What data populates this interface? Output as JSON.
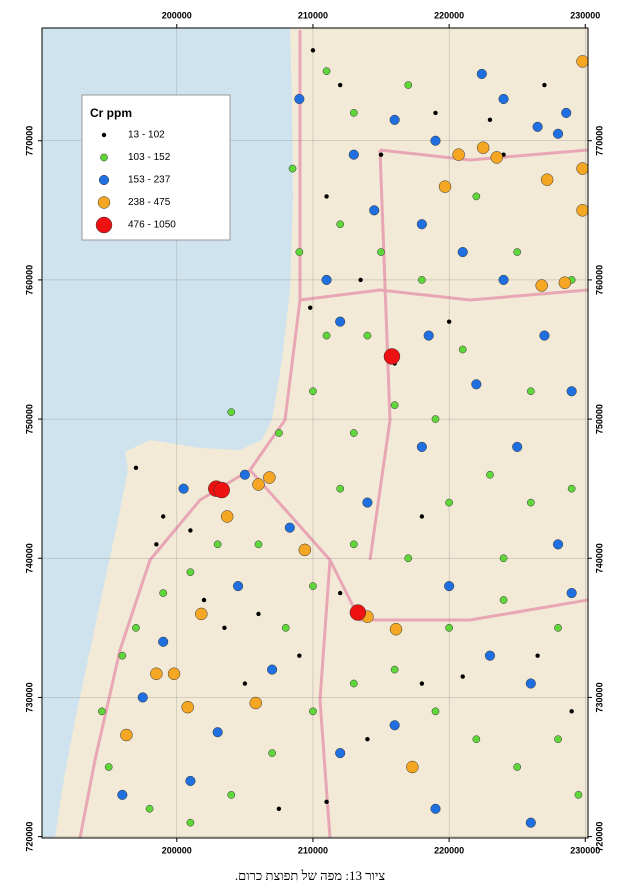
{
  "chart_data": {
    "type": "scatter",
    "legend_title": "Cr ppm",
    "caption": "ציור 13: מפה של תפוצת כרום.",
    "xlim": [
      190100,
      230200
    ],
    "ylim": [
      719900,
      778100
    ],
    "xticks": [
      200000,
      210000,
      220000,
      230000
    ],
    "yticks": [
      720000,
      730000,
      740000,
      750000,
      760000,
      770000
    ],
    "grid": true,
    "legend": "upper left",
    "series": [
      {
        "name": "13 - 102",
        "color": "#000000",
        "x": [
          210000,
          212000,
          215000,
          219000,
          223000,
          227000,
          211000,
          213500,
          216000,
          220000,
          218000,
          212000,
          209000,
          206000,
          202000,
          198500,
          197000,
          199000,
          201000,
          203500,
          205000,
          207500,
          211000,
          214000,
          218000,
          221000,
          226500,
          229000,
          209800,
          224000
        ],
        "y": [
          776500,
          774000,
          769000,
          772000,
          771500,
          774000,
          766000,
          760000,
          754000,
          757000,
          743000,
          737500,
          733000,
          736000,
          737000,
          741000,
          746500,
          743000,
          742000,
          735000,
          731000,
          722000,
          722500,
          727000,
          731000,
          731500,
          733000,
          729000,
          758000,
          769000
        ]
      },
      {
        "name": "103 - 152",
        "color": "#5fd63a",
        "x": [
          211000,
          213000,
          217000,
          215000,
          212000,
          210000,
          213000,
          216000,
          220000,
          223000,
          226000,
          229000,
          228000,
          224000,
          220000,
          217000,
          213000,
          210000,
          208000,
          206000,
          203000,
          201000,
          199000,
          197000,
          196000,
          194500,
          195000,
          198000,
          201000,
          204000,
          207000,
          210000,
          213000,
          216000,
          219000,
          222000,
          225000,
          228000,
          229500,
          224000,
          221000,
          225000,
          218000,
          214000,
          209000,
          222000,
          229000,
          226000,
          219000,
          212000,
          207500,
          204000,
          208500,
          211000
        ],
        "y": [
          775000,
          772000,
          774000,
          762000,
          764000,
          752000,
          749000,
          751000,
          744000,
          746000,
          744000,
          745000,
          735000,
          740000,
          735000,
          740000,
          741000,
          738000,
          735000,
          741000,
          741000,
          739000,
          737500,
          735000,
          733000,
          729000,
          725000,
          722000,
          721000,
          723000,
          726000,
          729000,
          731000,
          732000,
          729000,
          727000,
          725000,
          727000,
          723000,
          737000,
          755000,
          762000,
          760000,
          756000,
          762000,
          766000,
          760000,
          752000,
          750000,
          745000,
          749000,
          750500,
          768000,
          756000
        ]
      },
      {
        "name": "153 - 237",
        "color": "#1f6fe0",
        "x": [
          222400,
          224000,
          226500,
          228000,
          213000,
          216000,
          218000,
          221000,
          224000,
          227000,
          229000,
          218500,
          212000,
          205000,
          200500,
          208300,
          204500,
          199000,
          197500,
          201000,
          196000,
          203000,
          207000,
          214000,
          218000,
          222000,
          225000,
          228000,
          220000,
          223000,
          226000,
          216000,
          212000,
          219000,
          226000,
          229000,
          211000,
          214500,
          219000,
          209000,
          228600
        ],
        "y": [
          774800,
          773000,
          771000,
          770500,
          769000,
          771500,
          764000,
          762000,
          760000,
          756000,
          752000,
          756000,
          757000,
          746000,
          745000,
          742200,
          738000,
          734000,
          730000,
          724000,
          723000,
          727500,
          732000,
          744000,
          748000,
          752500,
          748000,
          741000,
          738000,
          733000,
          731000,
          728000,
          726000,
          722000,
          721000,
          737500,
          760000,
          765000,
          770000,
          773000,
          772000
        ]
      },
      {
        "name": "238 - 475",
        "color": "#f5a623",
        "x": [
          206000,
          206800,
          203700,
          220700,
          222500,
          223500,
          227200,
          229800,
          229800,
          226800,
          228500,
          201800,
          198500,
          199800,
          200800,
          205800,
          216100,
          217300,
          209400,
          229800,
          219700,
          196300,
          214000
        ],
        "y": [
          745300,
          745800,
          743000,
          769000,
          769500,
          768800,
          767200,
          768000,
          765000,
          759600,
          759800,
          736000,
          731700,
          731700,
          729300,
          729600,
          734900,
          725000,
          740600,
          775700,
          766700,
          727300,
          735800
        ]
      },
      {
        "name": "476 - 1050",
        "color": "#ee1111",
        "x": [
          202900,
          203300,
          215800,
          213300
        ],
        "y": [
          745000,
          744900,
          754500,
          736100
        ]
      }
    ]
  }
}
